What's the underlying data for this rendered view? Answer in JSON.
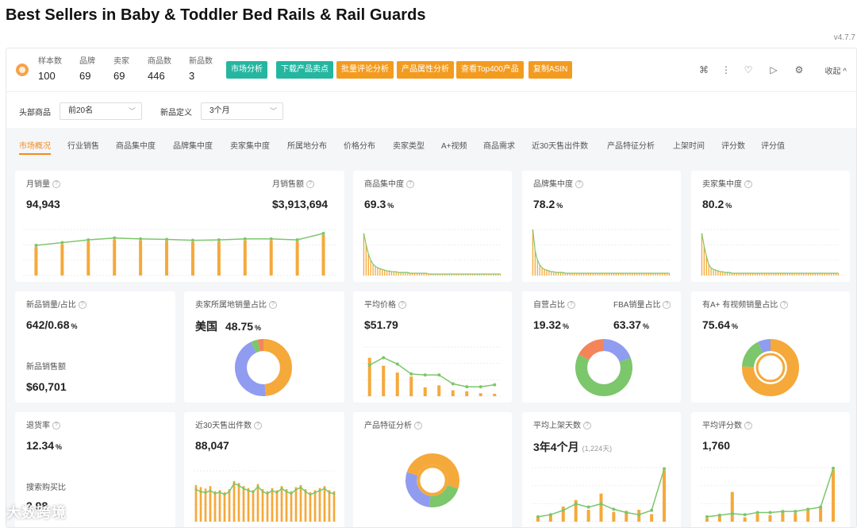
{
  "page": {
    "title": "Best Sellers in Baby & Toddler Bed Rails & Rail Guards",
    "version": "v4.7.7"
  },
  "stats": [
    {
      "label": "样本数",
      "value": "100"
    },
    {
      "label": "品牌",
      "value": "69"
    },
    {
      "label": "卖家",
      "value": "69"
    },
    {
      "label": "商品数",
      "value": "446"
    },
    {
      "label": "新品数",
      "value": "3"
    }
  ],
  "actions": [
    {
      "label": "市场分析",
      "color": "#25b6a0"
    },
    {
      "label": "下载产品卖点",
      "color": "#25b6a0"
    },
    {
      "label": "批量评论分析",
      "color": "#f39b1f"
    },
    {
      "label": "产品属性分析",
      "color": "#f39b1f"
    },
    {
      "label": "查看Top400产品",
      "color": "#f39b1f"
    },
    {
      "label": "复制ASIN",
      "color": "#f39b1f"
    }
  ],
  "toolbar": {
    "collapse": "收起"
  },
  "filters": {
    "head_label": "头部商品",
    "head_value": "前20名",
    "new_label": "新品定义",
    "new_value": "3个月"
  },
  "tabs": [
    "市场概况",
    "行业销售",
    "商品集中度",
    "品牌集中度",
    "卖家集中度",
    "所属地分布",
    "价格分布",
    "卖家类型",
    "A+视频",
    "商品需求",
    "近30天售出件数",
    "产品特征分析",
    "上架时间",
    "评分数",
    "评分值"
  ],
  "cards": {
    "monthly_sales": {
      "label": "月销量",
      "value": "94,943",
      "label2": "月销售额",
      "value2": "$3,913,694"
    },
    "product_conc": {
      "label": "商品集中度",
      "value": "69.3",
      "unit": "%"
    },
    "brand_conc": {
      "label": "品牌集中度",
      "value": "78.2",
      "unit": "%"
    },
    "seller_conc": {
      "label": "卖家集中度",
      "value": "80.2",
      "unit": "%"
    },
    "new_sales": {
      "label": "新品销量/占比",
      "value": "642/0.68",
      "unit": "%",
      "label2": "新品销售额",
      "value2": "$60,701"
    },
    "seller_loc": {
      "label": "卖家所属地销量占比",
      "country": "美国",
      "value": "48.75",
      "unit": "%"
    },
    "avg_price": {
      "label": "平均价格",
      "value": "$51.79"
    },
    "self_fba": {
      "label": "自营占比",
      "value": "19.32",
      "unit": "%",
      "label2": "FBA销量占比",
      "value2": "63.37"
    },
    "aplus": {
      "label": "有A+ 有视频销量占比",
      "value": "75.64",
      "unit": "%"
    },
    "return_rate": {
      "label": "退货率",
      "value": "12.34",
      "unit": "%",
      "label2": "搜索购买比",
      "value2": "2.98"
    },
    "sold30": {
      "label": "近30天售出件数",
      "value": "88,047"
    },
    "features": {
      "label": "产品特征分析"
    },
    "avg_listing": {
      "label": "平均上架天数",
      "value": "3年4个月",
      "sub": "(1,224天)"
    },
    "avg_reviews": {
      "label": "平均评分数",
      "value": "1,760"
    }
  },
  "watermark": "大数跨境",
  "colors": {
    "orange": "#f5a93a",
    "green": "#7cc66b",
    "blue": "#8f9cf0",
    "salmon": "#f4845a",
    "teal": "#25b6a0"
  },
  "chart_data": [
    {
      "type": "bar",
      "title": "月销量",
      "values": [
        62,
        68,
        74,
        78,
        76,
        75,
        73,
        74,
        76,
        76,
        74,
        88
      ],
      "line": [
        62,
        68,
        74,
        78,
        76,
        75,
        73,
        74,
        76,
        76,
        74,
        88
      ],
      "ylim": [
        0,
        100
      ]
    },
    {
      "type": "bar",
      "title": "商品集中度",
      "values": [
        55,
        40,
        28,
        20,
        15,
        12,
        10,
        9,
        8,
        7,
        6,
        6,
        5,
        5,
        5,
        4,
        4,
        4,
        4,
        4,
        3,
        3,
        3,
        3,
        3,
        3,
        3,
        3,
        2,
        2,
        2,
        2,
        2,
        2,
        2,
        2,
        2,
        2,
        2,
        2,
        2,
        2,
        2,
        2,
        2,
        2,
        2,
        2,
        2,
        2,
        2,
        2,
        2,
        2,
        2,
        2,
        2,
        2,
        2,
        2
      ],
      "ylim": [
        0,
        60
      ]
    },
    {
      "type": "bar",
      "title": "品牌集中度",
      "values": [
        60,
        32,
        20,
        14,
        10,
        8,
        7,
        6,
        5,
        5,
        4,
        4,
        4,
        4,
        3,
        3,
        3,
        3,
        3,
        3,
        3,
        3,
        3,
        3,
        3,
        3,
        3,
        3,
        3,
        3,
        3,
        3,
        3,
        3,
        3,
        3,
        3,
        3,
        3,
        3,
        3,
        3,
        3,
        3,
        3,
        3,
        3,
        3,
        3,
        3,
        3,
        3,
        3,
        3,
        3,
        3,
        3,
        3,
        3,
        3
      ],
      "ylim": [
        0,
        60
      ]
    },
    {
      "type": "bar",
      "title": "卖家集中度",
      "values": [
        55,
        38,
        25,
        14,
        10,
        8,
        7,
        6,
        5,
        5,
        4,
        4,
        4,
        3,
        3,
        3,
        3,
        3,
        3,
        3,
        3,
        3,
        3,
        3,
        3,
        3,
        3,
        3,
        3,
        3,
        3,
        3,
        3,
        3,
        3,
        3,
        3,
        3,
        3,
        3,
        3,
        3,
        3,
        3,
        3,
        3,
        3,
        3,
        3,
        3,
        3,
        3,
        3,
        3,
        3,
        3,
        3,
        3,
        3,
        3
      ],
      "ylim": [
        0,
        60
      ]
    },
    {
      "type": "pie",
      "title": "卖家所属地销量占比",
      "values": [
        48.75,
        44,
        4,
        3.25
      ],
      "colors": [
        "#f5a93a",
        "#8f9cf0",
        "#7cc66b",
        "#f4845a"
      ]
    },
    {
      "type": "bar",
      "title": "平均价格",
      "values": [
        78,
        62,
        48,
        40,
        18,
        22,
        12,
        10,
        6,
        5
      ],
      "line": [
        60,
        75,
        62,
        42,
        40,
        40,
        22,
        16,
        16,
        20
      ],
      "ylim": [
        0,
        100
      ]
    },
    {
      "type": "pie",
      "title": "自营占比",
      "values": [
        19.32,
        63.37,
        17.31
      ],
      "colors": [
        "#8f9cf0",
        "#7cc66b",
        "#f4845a"
      ]
    },
    {
      "type": "pie",
      "title": "有A+ 有视频销量占比",
      "values": [
        75.64,
        17,
        7.36
      ],
      "colors": [
        "#f5a93a",
        "#7cc66b",
        "#8f9cf0"
      ]
    },
    {
      "type": "bar",
      "title": "近30天售出件数",
      "values": [
        72,
        68,
        65,
        70,
        60,
        62,
        58,
        64,
        80,
        76,
        70,
        66,
        62,
        74,
        64,
        60,
        66,
        62,
        70,
        64,
        60,
        68,
        72,
        64,
        58,
        62,
        66,
        70,
        62,
        60
      ],
      "line": [
        60,
        56,
        54,
        58,
        52,
        55,
        50,
        56,
        72,
        68,
        62,
        58,
        55,
        66,
        56,
        52,
        58,
        54,
        62,
        56,
        52,
        60,
        64,
        56,
        50,
        54,
        58,
        62,
        54,
        52
      ],
      "ylim": [
        0,
        100
      ]
    },
    {
      "type": "pie",
      "title": "产品特征分析",
      "values": [
        30,
        22,
        28,
        20
      ],
      "colors": [
        "#f5a93a",
        "#7cc66b",
        "#8f9cf0",
        "#f5a93a"
      ]
    },
    {
      "type": "bar",
      "title": "平均上架天数",
      "values": [
        8,
        12,
        28,
        40,
        22,
        52,
        18,
        20,
        22,
        14,
        95
      ],
      "line": [
        6,
        10,
        18,
        30,
        24,
        30,
        20,
        14,
        10,
        18,
        95
      ],
      "ylim": [
        0,
        100
      ]
    },
    {
      "type": "bar",
      "title": "平均评分数",
      "values": [
        6,
        10,
        55,
        8,
        14,
        12,
        20,
        16,
        24,
        28,
        96
      ],
      "line": [
        6,
        9,
        12,
        10,
        14,
        14,
        16,
        16,
        20,
        24,
        96
      ],
      "ylim": [
        0,
        100
      ]
    }
  ]
}
